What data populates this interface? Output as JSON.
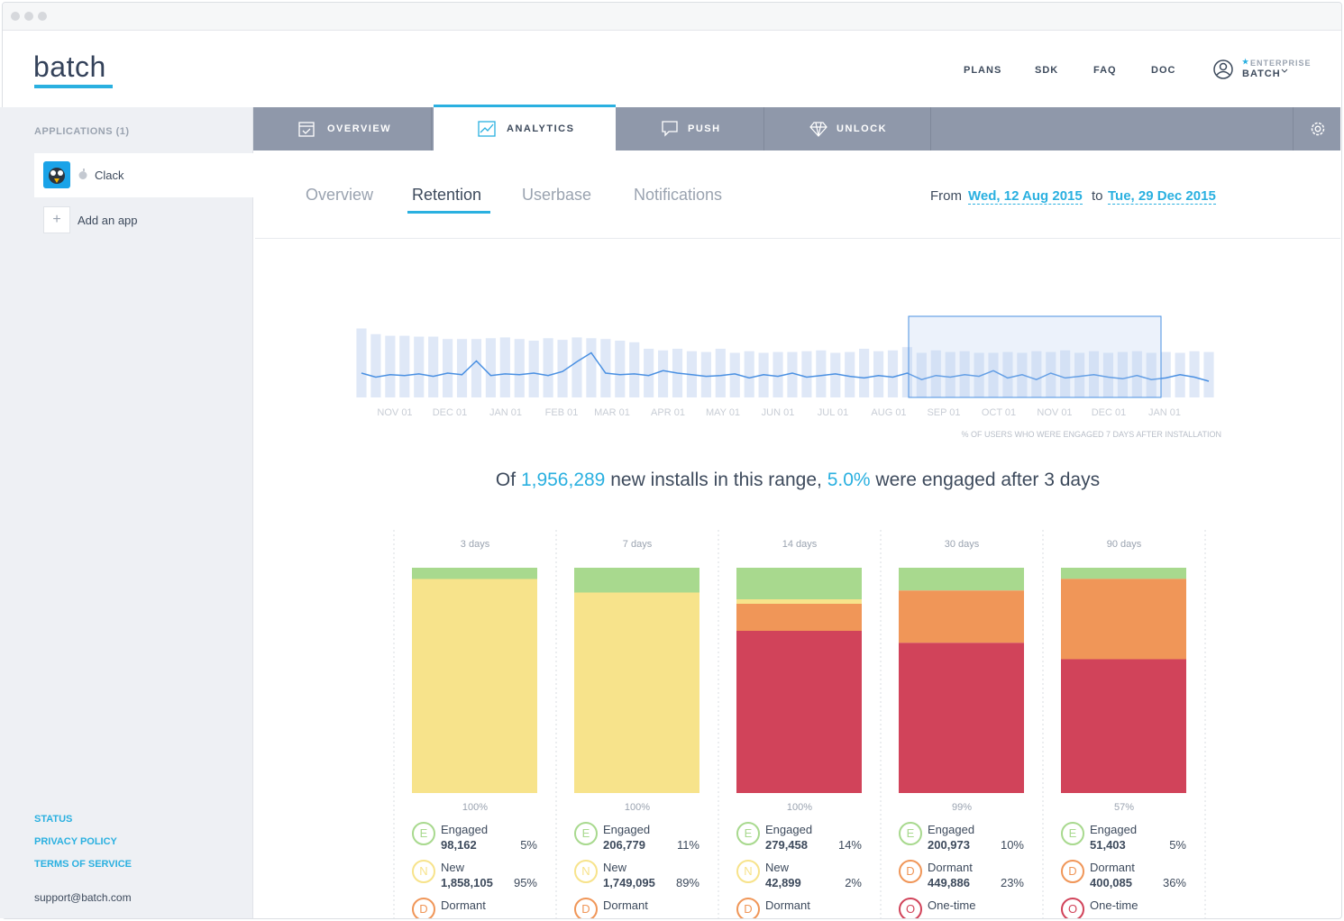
{
  "header": {
    "logo": "batch",
    "nav": [
      "PLANS",
      "SDK",
      "FAQ",
      "DOC"
    ],
    "account_tier": "ENTERPRISE",
    "account_name": "BATCH"
  },
  "sidebar": {
    "title": "APPLICATIONS (1)",
    "app": "Clack",
    "add": "Add an app",
    "links": [
      "STATUS",
      "PRIVACY POLICY",
      "TERMS OF SERVICE"
    ],
    "support": "support@batch.com"
  },
  "tabs": [
    "OVERVIEW",
    "ANALYTICS",
    "PUSH",
    "UNLOCK"
  ],
  "subtabs": [
    "Overview",
    "Retention",
    "Userbase",
    "Notifications"
  ],
  "range": {
    "from": "From",
    "start": "Wed, 12 Aug 2015",
    "to": "to",
    "end": "Tue, 29 Dec 2015"
  },
  "timeline": {
    "months": [
      "NOV 01",
      "DEC 01",
      "JAN 01",
      "FEB 01",
      "MAR 01",
      "APR 01",
      "MAY 01",
      "JUN 01",
      "JUL 01",
      "AUG 01",
      "SEP 01",
      "OCT 01",
      "NOV 01",
      "DEC 01",
      "JAN 01"
    ],
    "caption": "% OF USERS WHO WERE ENGAGED 7 DAYS AFTER INSTALLATION",
    "ylim": [
      0,
      100
    ],
    "line": [
      30,
      25,
      28,
      27,
      29,
      26,
      30,
      28,
      45,
      27,
      29,
      28,
      30,
      27,
      32,
      44,
      55,
      30,
      28,
      29,
      27,
      33,
      30,
      28,
      26,
      27,
      29,
      24,
      28,
      26,
      30,
      25,
      27,
      29,
      26,
      24,
      27,
      25,
      30,
      22,
      27,
      25,
      28,
      26,
      33,
      24,
      28,
      22,
      30,
      24,
      26,
      28,
      25,
      23,
      27,
      22,
      24,
      28,
      25,
      20
    ],
    "bars": [
      85,
      78,
      76,
      76,
      75,
      75,
      72,
      72,
      72,
      73,
      74,
      72,
      70,
      73,
      71,
      74,
      73,
      72,
      70,
      68,
      60,
      58,
      60,
      57,
      56,
      60,
      55,
      57,
      55,
      56,
      56,
      57,
      58,
      55,
      56,
      60,
      57,
      58,
      62,
      55,
      58,
      56,
      57,
      55,
      55,
      56,
      55,
      57,
      56,
      58,
      55,
      57,
      55,
      56,
      57,
      55,
      56,
      55,
      57,
      56
    ]
  },
  "summary": {
    "p1": "Of",
    "installs": "1,956,289",
    "p2": "new installs in this range,",
    "rate": "5.0%",
    "p3": "were engaged after 3 days"
  },
  "columns": [
    {
      "label": "3 days",
      "total": "100%",
      "segments": [
        {
          "color": "#a8d98e",
          "value": 5
        },
        {
          "color": "#f7e38b",
          "value": 95
        }
      ],
      "items": [
        {
          "badge": "E",
          "color": "#a8d98e",
          "name": "Engaged",
          "count": "98,162",
          "share": "5%"
        },
        {
          "badge": "N",
          "color": "#f7e38b",
          "name": "New",
          "count": "1,858,105",
          "share": "95%"
        },
        {
          "badge": "D",
          "color": "#f09658",
          "name": "Dormant"
        }
      ]
    },
    {
      "label": "7 days",
      "total": "100%",
      "segments": [
        {
          "color": "#a8d98e",
          "value": 11
        },
        {
          "color": "#f7e38b",
          "value": 89
        }
      ],
      "items": [
        {
          "badge": "E",
          "color": "#a8d98e",
          "name": "Engaged",
          "count": "206,779",
          "share": "11%"
        },
        {
          "badge": "N",
          "color": "#f7e38b",
          "name": "New",
          "count": "1,749,095",
          "share": "89%"
        },
        {
          "badge": "D",
          "color": "#f09658",
          "name": "Dormant"
        }
      ]
    },
    {
      "label": "14 days",
      "total": "100%",
      "segments": [
        {
          "color": "#a8d98e",
          "value": 14
        },
        {
          "color": "#f7e38b",
          "value": 2
        },
        {
          "color": "#f09658",
          "value": 12
        },
        {
          "color": "#d1435a",
          "value": 72
        }
      ],
      "items": [
        {
          "badge": "E",
          "color": "#a8d98e",
          "name": "Engaged",
          "count": "279,458",
          "share": "14%"
        },
        {
          "badge": "N",
          "color": "#f7e38b",
          "name": "New",
          "count": "42,899",
          "share": "2%"
        },
        {
          "badge": "D",
          "color": "#f09658",
          "name": "Dormant"
        }
      ]
    },
    {
      "label": "30 days",
      "total": "99%",
      "segments": [
        {
          "color": "#a8d98e",
          "value": 10
        },
        {
          "color": "#f09658",
          "value": 23
        },
        {
          "color": "#d1435a",
          "value": 66
        }
      ],
      "items": [
        {
          "badge": "E",
          "color": "#a8d98e",
          "name": "Engaged",
          "count": "200,973",
          "share": "10%"
        },
        {
          "badge": "D",
          "color": "#f09658",
          "name": "Dormant",
          "count": "449,886",
          "share": "23%"
        },
        {
          "badge": "O",
          "color": "#d1435a",
          "name": "One-time"
        }
      ]
    },
    {
      "label": "90 days",
      "total": "57%",
      "segments": [
        {
          "color": "#a8d98e",
          "value": 5
        },
        {
          "color": "#f09658",
          "value": 36
        },
        {
          "color": "#d1435a",
          "value": 60
        }
      ],
      "items": [
        {
          "badge": "E",
          "color": "#a8d98e",
          "name": "Engaged",
          "count": "51,403",
          "share": "5%"
        },
        {
          "badge": "D",
          "color": "#f09658",
          "name": "Dormant",
          "count": "400,085",
          "share": "36%"
        },
        {
          "badge": "O",
          "color": "#d1435a",
          "name": "One-time"
        }
      ]
    }
  ]
}
